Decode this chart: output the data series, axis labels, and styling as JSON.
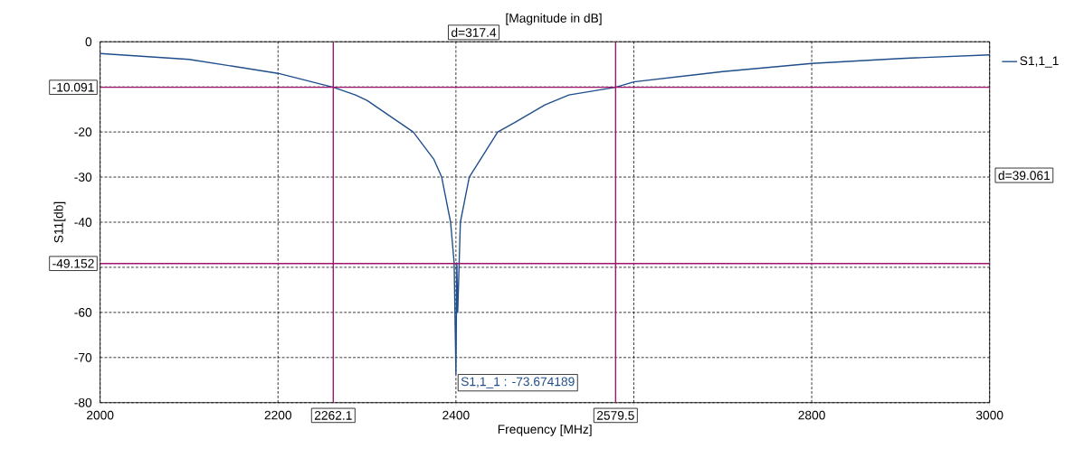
{
  "chart_data": {
    "type": "line",
    "title": "[Magnitude in dB]",
    "xlabel": "Frequency [MHz]",
    "ylabel": "S11[db]",
    "x": [
      2000,
      2100,
      2200,
      2262.1,
      2287,
      2300,
      2352,
      2375,
      2384,
      2394,
      2398,
      2400,
      2401,
      2402,
      2405,
      2415,
      2447,
      2467,
      2500,
      2527,
      2579.5,
      2600,
      2700,
      2800,
      2900,
      3000
    ],
    "series": [
      {
        "name": "S1,1_1",
        "color": "#1f4e8c",
        "values": [
          -2.6,
          -3.9,
          -7.0,
          -10.1,
          -11.8,
          -13.0,
          -20,
          -26,
          -30,
          -40,
          -49,
          -73.67,
          -49,
          -60,
          -40,
          -30,
          -20,
          -17.8,
          -14,
          -11.8,
          -10.1,
          -8.9,
          -6.6,
          -4.8,
          -3.7,
          -2.9
        ]
      }
    ],
    "xlim": [
      2000,
      3000
    ],
    "ylim": [
      -80,
      0
    ],
    "xticks": [
      2000,
      2200,
      2400,
      {
        "value": 2600,
        "label": null
      },
      2800,
      3000
    ],
    "yticks": [
      -80,
      -70,
      -60,
      {
        "value": -50,
        "label": null
      },
      -40,
      -30,
      -20,
      {
        "value": -10,
        "label": null
      },
      0
    ],
    "grid": true,
    "legend": "top right",
    "line_style": "solid",
    "marker": "none",
    "ref_lines": [
      {
        "axis": "y",
        "value": -10.091,
        "label": "-10.091",
        "color": "#a0156b"
      },
      {
        "axis": "y",
        "value": -49.152,
        "label": "-49.152",
        "color": "#a0156b"
      },
      {
        "axis": "x",
        "value": 2262.1,
        "label": "2262.1",
        "color": "#a0156b"
      },
      {
        "axis": "x",
        "value": 2579.5,
        "label": "2579.5",
        "color": "#a0156b"
      }
    ],
    "annotations": [
      "d=317.4",
      "d=39.061",
      {
        "text": "S1,1_1 : -73.674189",
        "x": 2400,
        "y": -73.674189
      }
    ]
  }
}
